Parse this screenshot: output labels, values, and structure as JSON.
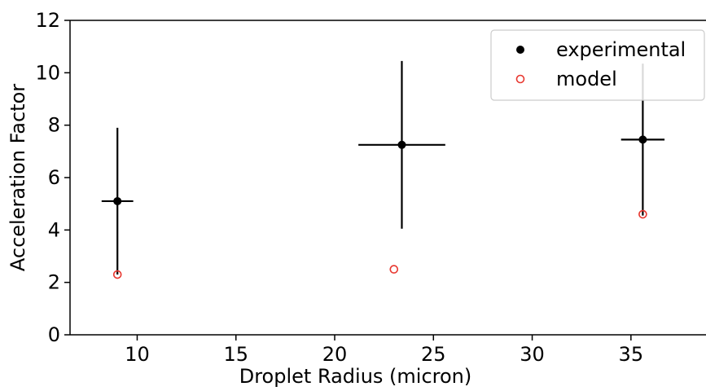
{
  "chart_data": {
    "type": "scatter",
    "xlabel": "Droplet Radius (micron)",
    "ylabel": "Acceleration Factor",
    "xlim": [
      6.6,
      38.8
    ],
    "ylim": [
      0,
      12
    ],
    "xticks": [
      10,
      15,
      20,
      25,
      30,
      35
    ],
    "yticks": [
      0,
      2,
      4,
      6,
      8,
      10,
      12
    ],
    "legend_position": "top-right",
    "grid": false,
    "series": [
      {
        "name": "experimental",
        "marker": "filled-circle",
        "color": "#000000",
        "points": [
          {
            "x": 9.0,
            "y": 5.1,
            "xerr": 0.8,
            "yerr_low": 2.8,
            "yerr_high": 2.8
          },
          {
            "x": 23.4,
            "y": 7.25,
            "xerr": 2.2,
            "yerr_low": 3.2,
            "yerr_high": 3.2
          },
          {
            "x": 35.6,
            "y": 7.45,
            "xerr": 1.1,
            "yerr_low": 2.9,
            "yerr_high": 2.9
          }
        ]
      },
      {
        "name": "model",
        "marker": "open-circle",
        "color": "#e8372f",
        "points": [
          {
            "x": 9.0,
            "y": 2.3
          },
          {
            "x": 23.0,
            "y": 2.5
          },
          {
            "x": 35.6,
            "y": 4.6
          }
        ]
      }
    ]
  }
}
